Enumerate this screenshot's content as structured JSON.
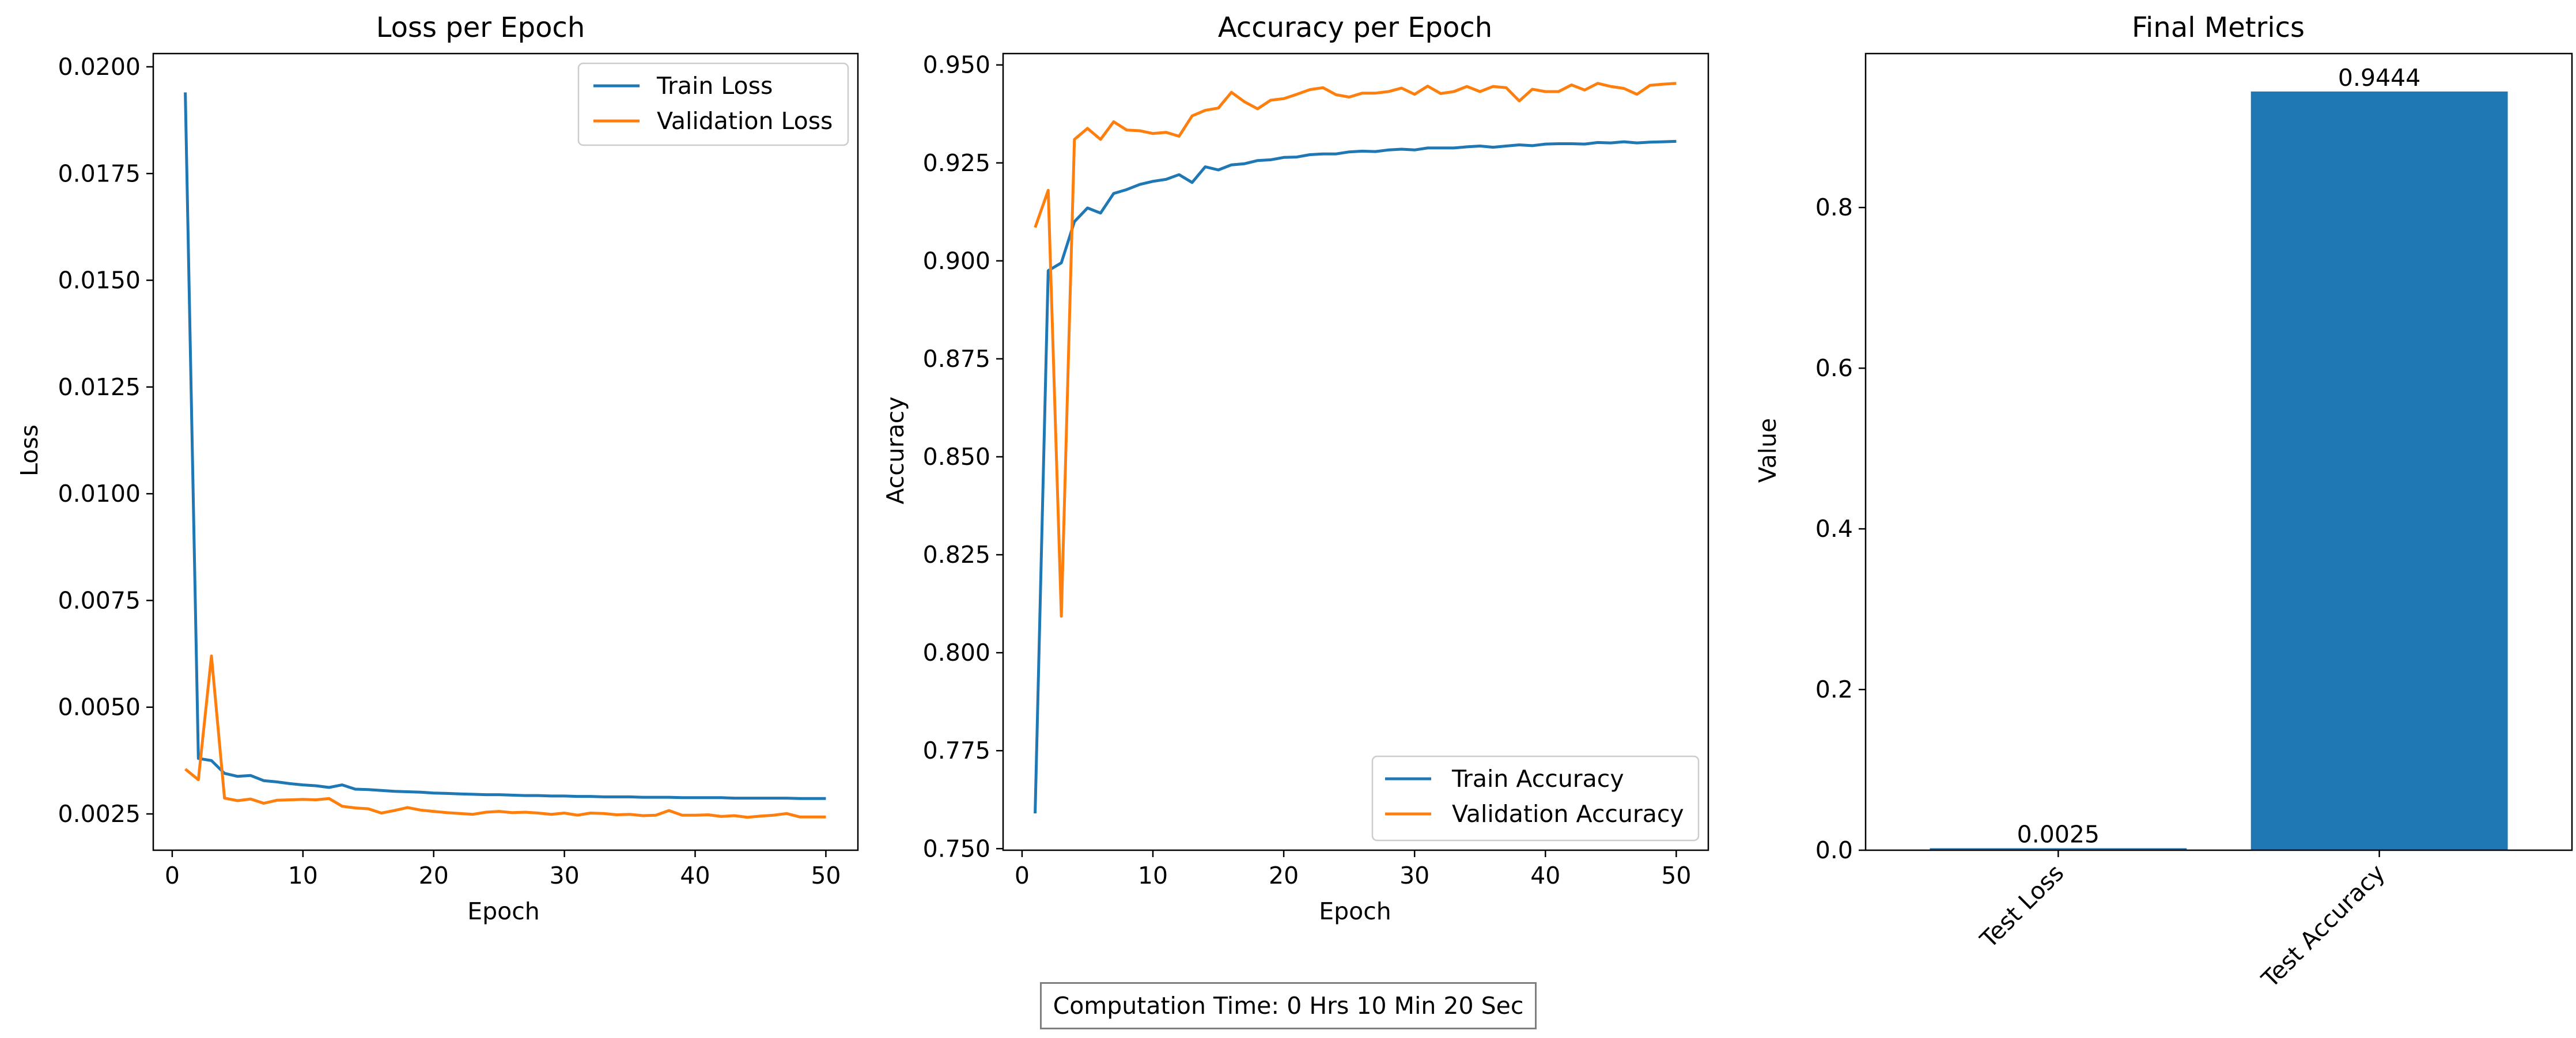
{
  "colors": {
    "train": "#1f77b4",
    "validation": "#ff7f0e",
    "bar": "#1f77b4",
    "axis": "#000000",
    "legend_border": "#cccccc",
    "footer_border": "#7f7f7f"
  },
  "footer": {
    "text": "Computation Time: 0 Hrs 10 Min 20 Sec"
  },
  "chart_data": [
    {
      "type": "line",
      "title": "Loss per Epoch",
      "xlabel": "Epoch",
      "ylabel": "Loss",
      "xlim": [
        -1.45,
        52.45
      ],
      "ylim": [
        0.00165,
        0.02031
      ],
      "xticks": [
        0,
        10,
        20,
        30,
        40,
        50
      ],
      "yticks": [
        0.0025,
        0.005,
        0.0075,
        0.01,
        0.0125,
        0.015,
        0.0175,
        0.02
      ],
      "ytick_decimals": 4,
      "grid": false,
      "legend_position": "top-right",
      "x": [
        1,
        2,
        3,
        4,
        5,
        6,
        7,
        8,
        9,
        10,
        11,
        12,
        13,
        14,
        15,
        16,
        17,
        18,
        19,
        20,
        21,
        22,
        23,
        24,
        25,
        26,
        27,
        28,
        29,
        30,
        31,
        32,
        33,
        34,
        35,
        36,
        37,
        38,
        39,
        40,
        41,
        42,
        43,
        44,
        45,
        46,
        47,
        48,
        49,
        50
      ],
      "series": [
        {
          "name": "Train Loss",
          "color": "#1f77b4",
          "values": [
            0.0194,
            0.0038,
            0.00375,
            0.00345,
            0.00338,
            0.0034,
            0.00328,
            0.00325,
            0.00321,
            0.00318,
            0.00316,
            0.00312,
            0.00318,
            0.00308,
            0.00307,
            0.00305,
            0.00303,
            0.00302,
            0.00301,
            0.00299,
            0.00298,
            0.00297,
            0.00296,
            0.00295,
            0.00295,
            0.00294,
            0.00293,
            0.00293,
            0.00292,
            0.00292,
            0.00291,
            0.00291,
            0.0029,
            0.0029,
            0.0029,
            0.00289,
            0.00289,
            0.00289,
            0.00288,
            0.00288,
            0.00288,
            0.00288,
            0.00287,
            0.00287,
            0.00287,
            0.00287,
            0.00287,
            0.00286,
            0.00286,
            0.00286
          ]
        },
        {
          "name": "Validation Loss",
          "color": "#ff7f0e",
          "values": [
            0.00355,
            0.0033,
            0.0062,
            0.00287,
            0.00281,
            0.00285,
            0.00275,
            0.00282,
            0.00283,
            0.00284,
            0.00283,
            0.00286,
            0.00268,
            0.00264,
            0.00262,
            0.00252,
            0.00258,
            0.00265,
            0.00259,
            0.00256,
            0.00253,
            0.00251,
            0.00249,
            0.00254,
            0.00256,
            0.00253,
            0.00254,
            0.00252,
            0.00249,
            0.00252,
            0.00247,
            0.00252,
            0.00251,
            0.00248,
            0.00249,
            0.00246,
            0.00247,
            0.00258,
            0.00247,
            0.00247,
            0.00248,
            0.00244,
            0.00246,
            0.00242,
            0.00245,
            0.00247,
            0.00251,
            0.00243,
            0.00243,
            0.00243
          ]
        }
      ]
    },
    {
      "type": "line",
      "title": "Accuracy per Epoch",
      "xlabel": "Epoch",
      "ylabel": "Accuracy",
      "xlim": [
        -1.45,
        52.45
      ],
      "ylim": [
        0.7496,
        0.9529
      ],
      "xticks": [
        0,
        10,
        20,
        30,
        40,
        50
      ],
      "yticks": [
        0.75,
        0.775,
        0.8,
        0.825,
        0.85,
        0.875,
        0.9,
        0.925,
        0.95
      ],
      "ytick_decimals": 3,
      "grid": false,
      "legend_position": "bottom-right",
      "x": [
        1,
        2,
        3,
        4,
        5,
        6,
        7,
        8,
        9,
        10,
        11,
        12,
        13,
        14,
        15,
        16,
        17,
        18,
        19,
        20,
        21,
        22,
        23,
        24,
        25,
        26,
        27,
        28,
        29,
        30,
        31,
        32,
        33,
        34,
        35,
        36,
        37,
        38,
        39,
        40,
        41,
        42,
        43,
        44,
        45,
        46,
        47,
        48,
        49,
        50
      ],
      "series": [
        {
          "name": "Train Accuracy",
          "color": "#1f77b4",
          "values": [
            0.759,
            0.8975,
            0.8995,
            0.91,
            0.9135,
            0.9122,
            0.9172,
            0.9182,
            0.9195,
            0.9203,
            0.9208,
            0.922,
            0.92,
            0.924,
            0.9232,
            0.9245,
            0.9248,
            0.9256,
            0.9258,
            0.9264,
            0.9265,
            0.9271,
            0.9273,
            0.9273,
            0.9278,
            0.928,
            0.9279,
            0.9283,
            0.9285,
            0.9283,
            0.9288,
            0.9288,
            0.9288,
            0.9291,
            0.9293,
            0.929,
            0.9293,
            0.9296,
            0.9294,
            0.9298,
            0.9299,
            0.9299,
            0.9298,
            0.9302,
            0.9301,
            0.9304,
            0.9301,
            0.9303,
            0.9304,
            0.9305
          ]
        },
        {
          "name": "Validation Accuracy",
          "color": "#ff7f0e",
          "values": [
            0.9085,
            0.918,
            0.8093,
            0.931,
            0.9338,
            0.931,
            0.9355,
            0.9334,
            0.9332,
            0.9325,
            0.9328,
            0.9318,
            0.937,
            0.9384,
            0.939,
            0.943,
            0.9406,
            0.9388,
            0.941,
            0.9414,
            0.9425,
            0.9437,
            0.9442,
            0.9424,
            0.9418,
            0.9428,
            0.9428,
            0.9432,
            0.9441,
            0.9425,
            0.9446,
            0.9427,
            0.9432,
            0.9445,
            0.9432,
            0.9445,
            0.9442,
            0.9408,
            0.9438,
            0.9432,
            0.9432,
            0.9449,
            0.9436,
            0.9453,
            0.9445,
            0.944,
            0.9425,
            0.9448,
            0.9451,
            0.9453
          ]
        }
      ]
    },
    {
      "type": "bar",
      "title": "Final Metrics",
      "xlabel": "",
      "ylabel": "Value",
      "categories": [
        "Test Loss",
        "Test Accuracy"
      ],
      "values": [
        0.0025,
        0.9444
      ],
      "data_labels": [
        "0.0025",
        "0.9444"
      ],
      "color": "#1f77b4",
      "xlim": [
        -0.6,
        1.6
      ],
      "ylim": [
        0,
        0.9916
      ],
      "yticks": [
        0.0,
        0.2,
        0.4,
        0.6,
        0.8
      ],
      "ytick_decimals": 1,
      "xtick_rotation": -45,
      "grid": false
    }
  ]
}
